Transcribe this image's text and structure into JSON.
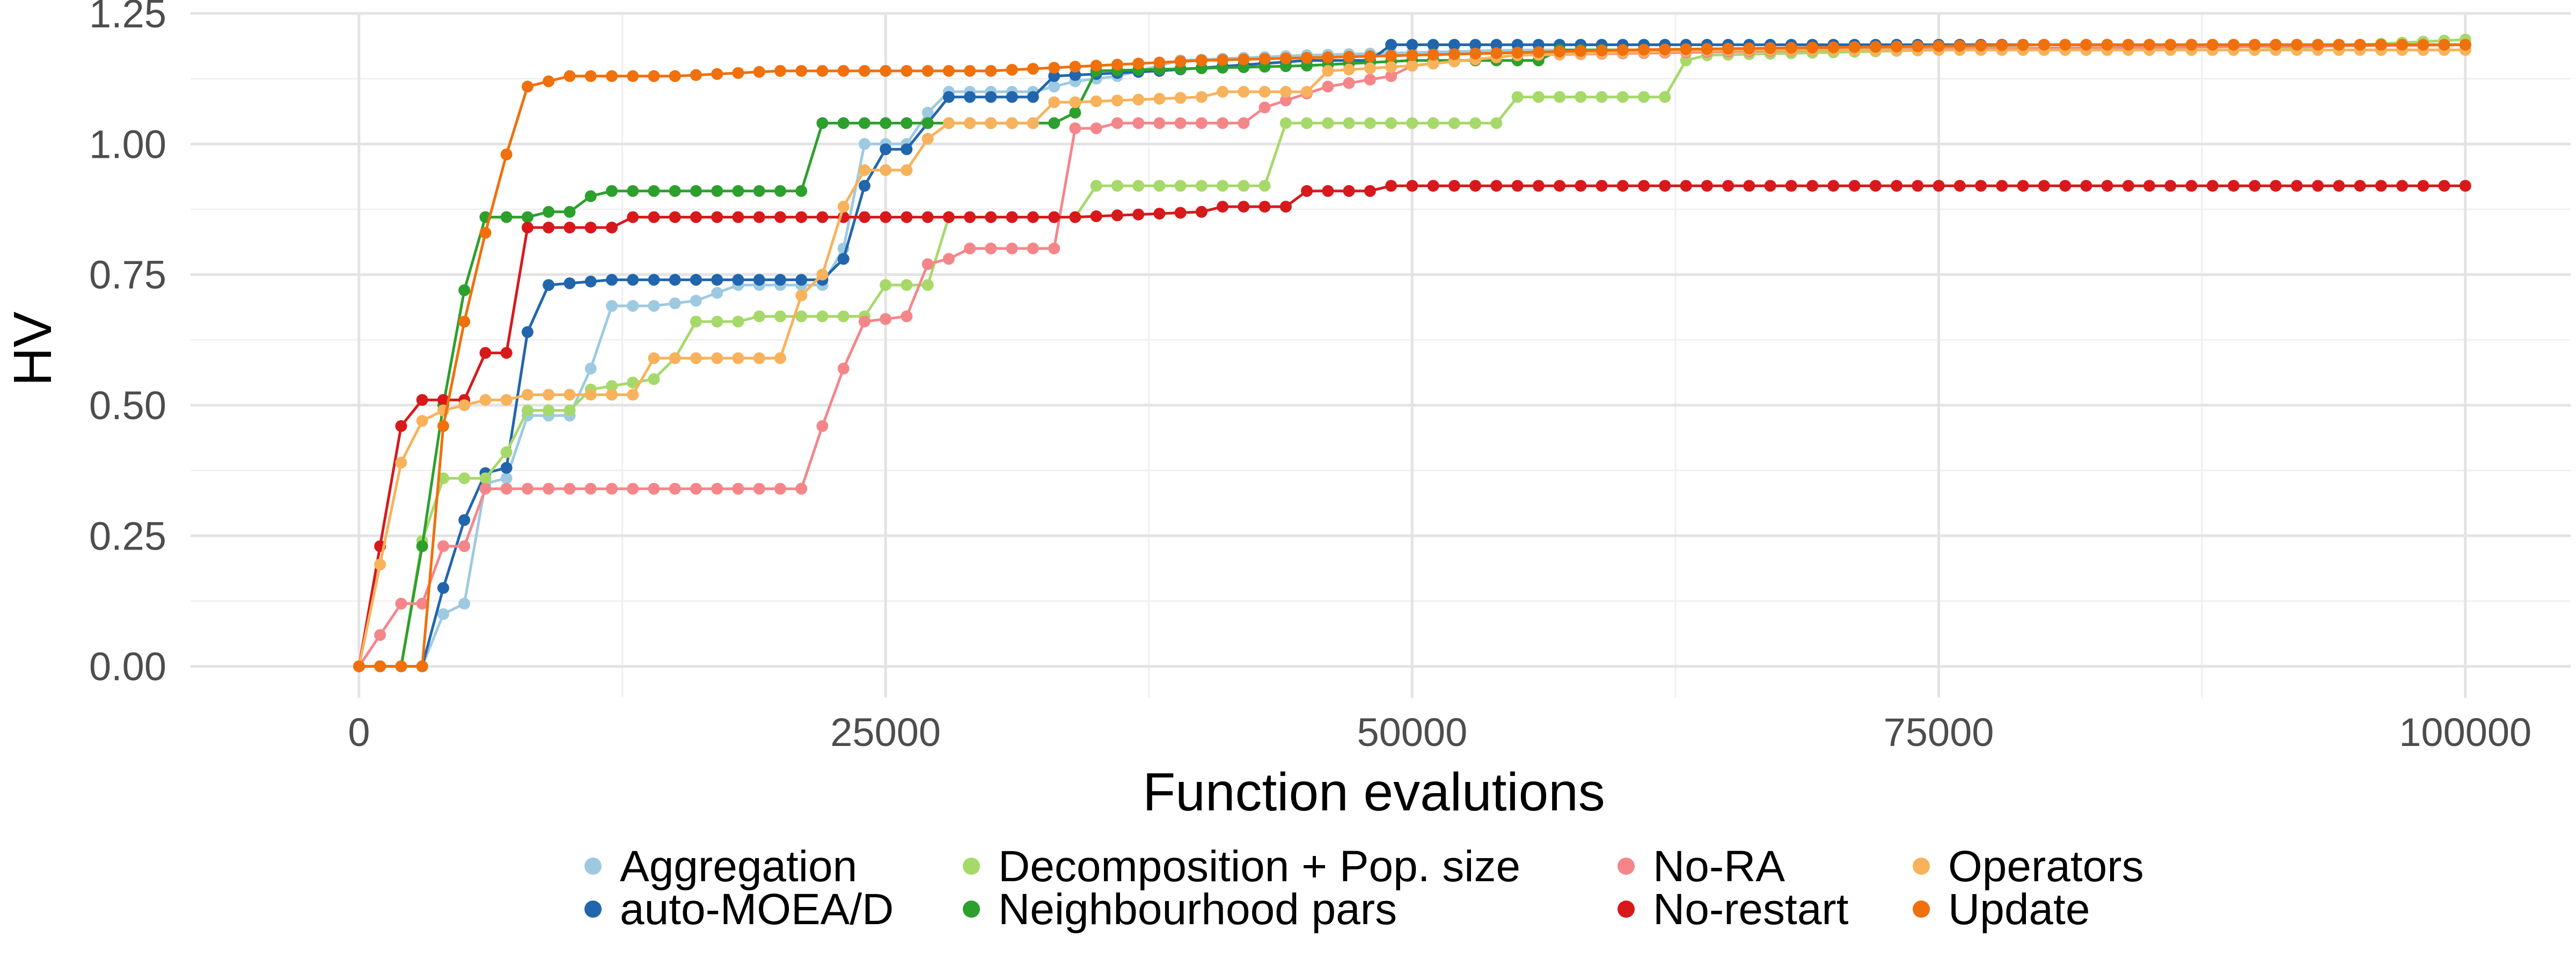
{
  "chart_data": {
    "type": "line",
    "title": "",
    "xlabel": "Function evalutions",
    "ylabel": "HV",
    "xlim": [
      -8000,
      105000
    ],
    "ylim": [
      -0.06,
      1.25
    ],
    "xticks": [
      0,
      25000,
      50000,
      75000,
      100000
    ],
    "xtick_labels": [
      "0",
      "25000",
      "50000",
      "75000",
      "100000"
    ],
    "yticks": [
      0,
      0.25,
      0.5,
      0.75,
      1.0,
      1.25
    ],
    "ytick_labels": [
      "0.00",
      "0.25",
      "0.50",
      "0.75",
      "1.00",
      "1.25"
    ],
    "grid": true,
    "legend_position": "bottom",
    "series": [
      {
        "name": "Aggregation",
        "color": "#9ECAE1",
        "points": [
          [
            0,
            0
          ],
          [
            2000,
            0
          ],
          [
            3000,
            0
          ],
          [
            4000,
            0.1
          ],
          [
            5000,
            0.12
          ],
          [
            6000,
            0.35
          ],
          [
            7000,
            0.36
          ],
          [
            8000,
            0.48
          ],
          [
            9000,
            0.48
          ],
          [
            10000,
            0.48
          ],
          [
            11000,
            0.57
          ],
          [
            12000,
            0.69
          ],
          [
            14000,
            0.69
          ],
          [
            16000,
            0.7
          ],
          [
            18000,
            0.73
          ],
          [
            20000,
            0.73
          ],
          [
            22000,
            0.73
          ],
          [
            23000,
            0.8
          ],
          [
            24000,
            1.0
          ],
          [
            26000,
            1.0
          ],
          [
            27000,
            1.06
          ],
          [
            28000,
            1.1
          ],
          [
            32000,
            1.1
          ],
          [
            34000,
            1.12
          ],
          [
            36000,
            1.13
          ],
          [
            39000,
            1.16
          ],
          [
            45000,
            1.17
          ],
          [
            55000,
            1.18
          ],
          [
            70000,
            1.18
          ],
          [
            80000,
            1.19
          ],
          [
            90000,
            1.19
          ],
          [
            100000,
            1.19
          ]
        ]
      },
      {
        "name": "auto-MOEA/D",
        "color": "#2166AC",
        "points": [
          [
            0,
            0
          ],
          [
            3000,
            0
          ],
          [
            4000,
            0.15
          ],
          [
            5000,
            0.28
          ],
          [
            6000,
            0.37
          ],
          [
            7000,
            0.38
          ],
          [
            8000,
            0.64
          ],
          [
            9000,
            0.73
          ],
          [
            12000,
            0.74
          ],
          [
            22000,
            0.74
          ],
          [
            23000,
            0.78
          ],
          [
            24000,
            0.92
          ],
          [
            25000,
            0.99
          ],
          [
            26000,
            0.99
          ],
          [
            27000,
            1.04
          ],
          [
            28000,
            1.09
          ],
          [
            32000,
            1.09
          ],
          [
            33000,
            1.13
          ],
          [
            38000,
            1.14
          ],
          [
            45000,
            1.16
          ],
          [
            48000,
            1.16
          ],
          [
            49000,
            1.19
          ],
          [
            60000,
            1.19
          ],
          [
            80000,
            1.19
          ],
          [
            100000,
            1.19
          ]
        ]
      },
      {
        "name": "Decomposition + Pop. size",
        "color": "#A6D96A",
        "points": [
          [
            0,
            0
          ],
          [
            2000,
            0
          ],
          [
            3000,
            0.24
          ],
          [
            4000,
            0.36
          ],
          [
            5000,
            0.36
          ],
          [
            6000,
            0.36
          ],
          [
            7000,
            0.41
          ],
          [
            8000,
            0.49
          ],
          [
            10000,
            0.49
          ],
          [
            11000,
            0.53
          ],
          [
            14000,
            0.55
          ],
          [
            15000,
            0.59
          ],
          [
            16000,
            0.66
          ],
          [
            18000,
            0.66
          ],
          [
            19000,
            0.67
          ],
          [
            24000,
            0.67
          ],
          [
            25000,
            0.73
          ],
          [
            27000,
            0.73
          ],
          [
            28000,
            0.86
          ],
          [
            34000,
            0.86
          ],
          [
            35000,
            0.92
          ],
          [
            43000,
            0.92
          ],
          [
            44000,
            1.04
          ],
          [
            54000,
            1.04
          ],
          [
            55000,
            1.09
          ],
          [
            62000,
            1.09
          ],
          [
            63000,
            1.16
          ],
          [
            64000,
            1.17
          ],
          [
            75000,
            1.18
          ],
          [
            90000,
            1.18
          ],
          [
            100000,
            1.2
          ]
        ]
      },
      {
        "name": "Neighbourhood pars",
        "color": "#2CA02C",
        "points": [
          [
            0,
            0
          ],
          [
            2000,
            0
          ],
          [
            3000,
            0.23
          ],
          [
            4000,
            0.5
          ],
          [
            5000,
            0.72
          ],
          [
            6000,
            0.86
          ],
          [
            8000,
            0.86
          ],
          [
            9000,
            0.87
          ],
          [
            10000,
            0.87
          ],
          [
            11000,
            0.9
          ],
          [
            12000,
            0.91
          ],
          [
            21000,
            0.91
          ],
          [
            22000,
            1.04
          ],
          [
            28000,
            1.04
          ],
          [
            33000,
            1.04
          ],
          [
            34000,
            1.06
          ],
          [
            35000,
            1.14
          ],
          [
            45000,
            1.15
          ],
          [
            50000,
            1.16
          ],
          [
            56000,
            1.16
          ],
          [
            57000,
            1.18
          ],
          [
            70000,
            1.18
          ],
          [
            100000,
            1.19
          ]
        ]
      },
      {
        "name": "No-RA",
        "color": "#F4868A",
        "points": [
          [
            0,
            0
          ],
          [
            2000,
            0.12
          ],
          [
            3000,
            0.12
          ],
          [
            4000,
            0.23
          ],
          [
            5000,
            0.23
          ],
          [
            6000,
            0.34
          ],
          [
            8000,
            0.34
          ],
          [
            20000,
            0.34
          ],
          [
            21000,
            0.34
          ],
          [
            22000,
            0.46
          ],
          [
            23000,
            0.57
          ],
          [
            24000,
            0.66
          ],
          [
            26000,
            0.67
          ],
          [
            27000,
            0.77
          ],
          [
            28000,
            0.78
          ],
          [
            29000,
            0.8
          ],
          [
            33000,
            0.8
          ],
          [
            34000,
            1.03
          ],
          [
            35000,
            1.03
          ],
          [
            36000,
            1.04
          ],
          [
            42000,
            1.04
          ],
          [
            43000,
            1.07
          ],
          [
            46000,
            1.11
          ],
          [
            49000,
            1.13
          ],
          [
            50000,
            1.15
          ],
          [
            55000,
            1.17
          ],
          [
            70000,
            1.18
          ],
          [
            100000,
            1.19
          ]
        ]
      },
      {
        "name": "No-restart",
        "color": "#D7191C",
        "points": [
          [
            0,
            0
          ],
          [
            1000,
            0.23
          ],
          [
            2000,
            0.46
          ],
          [
            3000,
            0.51
          ],
          [
            5000,
            0.51
          ],
          [
            6000,
            0.6
          ],
          [
            7000,
            0.6
          ],
          [
            8000,
            0.84
          ],
          [
            12000,
            0.84
          ],
          [
            13000,
            0.86
          ],
          [
            23000,
            0.86
          ],
          [
            24000,
            0.86
          ],
          [
            34000,
            0.86
          ],
          [
            40000,
            0.87
          ],
          [
            41000,
            0.88
          ],
          [
            44000,
            0.88
          ],
          [
            45000,
            0.91
          ],
          [
            48000,
            0.91
          ],
          [
            49000,
            0.92
          ],
          [
            100000,
            0.92
          ]
        ]
      },
      {
        "name": "Operators",
        "color": "#F8B25C",
        "points": [
          [
            0,
            0
          ],
          [
            2000,
            0.39
          ],
          [
            3000,
            0.47
          ],
          [
            4000,
            0.49
          ],
          [
            5000,
            0.5
          ],
          [
            6000,
            0.51
          ],
          [
            7000,
            0.51
          ],
          [
            8000,
            0.52
          ],
          [
            13000,
            0.52
          ],
          [
            14000,
            0.59
          ],
          [
            20000,
            0.59
          ],
          [
            21000,
            0.71
          ],
          [
            22000,
            0.75
          ],
          [
            23000,
            0.88
          ],
          [
            24000,
            0.95
          ],
          [
            26000,
            0.95
          ],
          [
            27000,
            1.01
          ],
          [
            28000,
            1.04
          ],
          [
            32000,
            1.04
          ],
          [
            33000,
            1.08
          ],
          [
            34000,
            1.08
          ],
          [
            40000,
            1.09
          ],
          [
            41000,
            1.1
          ],
          [
            45000,
            1.1
          ],
          [
            46000,
            1.14
          ],
          [
            50000,
            1.15
          ],
          [
            55000,
            1.17
          ],
          [
            65000,
            1.18
          ],
          [
            100000,
            1.18
          ]
        ]
      },
      {
        "name": "Update",
        "color": "#F0700C",
        "points": [
          [
            0,
            0
          ],
          [
            3000,
            0
          ],
          [
            4000,
            0.46
          ],
          [
            5000,
            0.66
          ],
          [
            6000,
            0.83
          ],
          [
            7000,
            0.98
          ],
          [
            8000,
            1.11
          ],
          [
            9000,
            1.12
          ],
          [
            10000,
            1.13
          ],
          [
            15000,
            1.13
          ],
          [
            20000,
            1.14
          ],
          [
            30000,
            1.14
          ],
          [
            35000,
            1.15
          ],
          [
            40000,
            1.16
          ],
          [
            50000,
            1.17
          ],
          [
            60000,
            1.18
          ],
          [
            80000,
            1.19
          ],
          [
            100000,
            1.19
          ]
        ]
      }
    ]
  },
  "legend": {
    "items": [
      "Aggregation",
      "auto-MOEA/D",
      "Decomposition + Pop. size",
      "Neighbourhood pars",
      "No-RA",
      "No-restart",
      "Operators",
      "Update"
    ]
  }
}
